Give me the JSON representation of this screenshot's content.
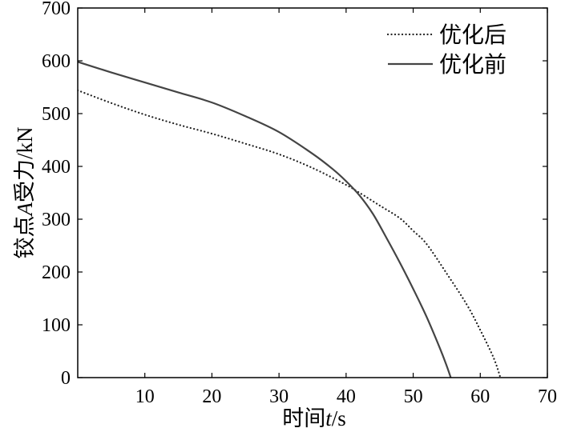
{
  "chart_data": {
    "type": "line",
    "xlabel": "时间t/s",
    "ylabel": "铰点A受力/kN",
    "xlim": [
      0,
      70
    ],
    "ylim": [
      0,
      700
    ],
    "xticks": [
      10,
      20,
      30,
      40,
      50,
      60,
      70
    ],
    "yticks": [
      0,
      100,
      200,
      300,
      400,
      500,
      600,
      700
    ],
    "grid": false,
    "legend": "top-right",
    "series": [
      {
        "name": "优化后",
        "line_style": "dotted",
        "color": "#222222",
        "x": [
          0,
          5,
          10,
          15,
          20,
          25,
          30,
          35,
          40,
          42,
          45,
          48,
          50,
          52,
          55,
          58,
          60,
          62,
          63
        ],
        "y": [
          544,
          520,
          498,
          479,
          462,
          443,
          423,
          397,
          365,
          350,
          326,
          302,
          278,
          253,
          197,
          138,
          90,
          37,
          0
        ]
      },
      {
        "name": "优化前",
        "line_style": "solid",
        "color": "#444444",
        "x": [
          0,
          5,
          10,
          15,
          20,
          25,
          30,
          35,
          38,
          40,
          42,
          44,
          46,
          48,
          50,
          52,
          54,
          55,
          55.6
        ],
        "y": [
          598,
          578,
          559,
          540,
          521,
          495,
          465,
          424,
          395,
          372,
          345,
          310,
          265,
          218,
          168,
          115,
          55,
          22,
          0
        ]
      }
    ]
  }
}
